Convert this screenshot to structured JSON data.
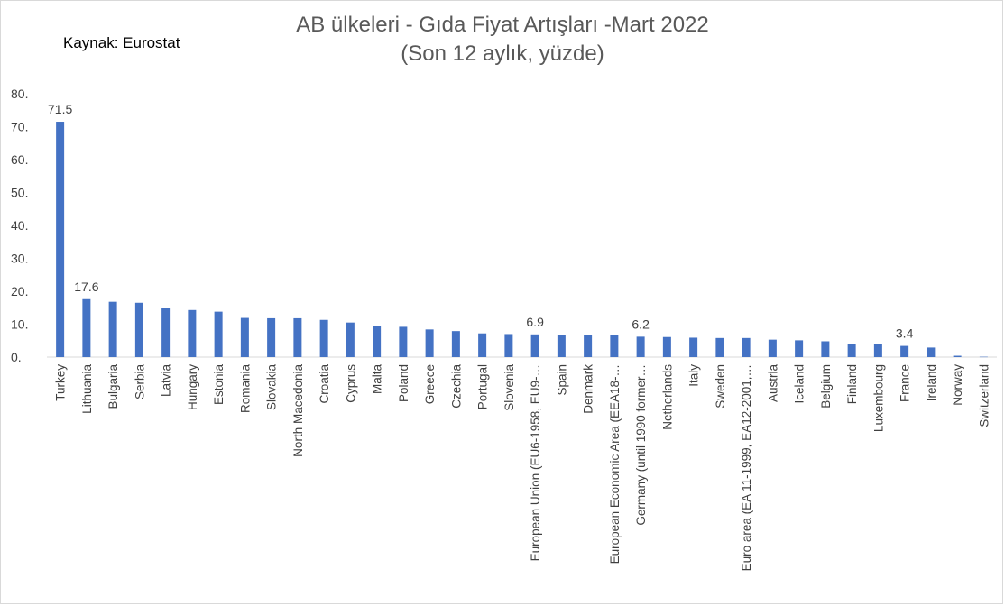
{
  "colors": {
    "bar": "#4472c4",
    "text": "#404040",
    "title": "#595959",
    "grid": "#d9d9d9"
  },
  "title_lines": [
    "AB ülkeleri - Gıda Fiyat Artışları -Mart 2022",
    "(Son 12 aylık, yüzde)"
  ],
  "source": "Kaynak: Eurostat",
  "chart_data": {
    "type": "bar",
    "title": "AB ülkeleri - Gıda Fiyat Artışları -Mart 2022 (Son 12 aylık, yüzde)",
    "xlabel": "",
    "ylabel": "",
    "ylim": [
      0,
      80
    ],
    "y_ticks": [
      "0.",
      "10.",
      "20.",
      "30.",
      "40.",
      "50.",
      "60.",
      "70.",
      "80."
    ],
    "grid": false,
    "categories": [
      "Turkey",
      "Lithuania",
      "Bulgaria",
      "Serbia",
      "Latvia",
      "Hungary",
      "Estonia",
      "Romania",
      "Slovakia",
      "North Macedonia",
      "Croatia",
      "Cyprus",
      "Malta",
      "Poland",
      "Greece",
      "Czechia",
      "Portugal",
      "Slovenia",
      "European Union (EU6-1958, EU9-…",
      "Spain",
      "Denmark",
      "European Economic Area (EEA18-…",
      "Germany (until 1990 former…",
      "Netherlands",
      "Italy",
      "Sweden",
      "Euro area (EA 11-1999, EA12-2001,…",
      "Austria",
      "Iceland",
      "Belgium",
      "Finland",
      "Luxembourg",
      "France",
      "Ireland",
      "Norway",
      "Switzerland"
    ],
    "values": [
      71.5,
      17.6,
      16.8,
      16.5,
      14.9,
      14.3,
      13.8,
      11.9,
      11.8,
      11.8,
      11.3,
      10.5,
      9.5,
      9.2,
      8.4,
      7.9,
      7.2,
      7.0,
      6.9,
      6.8,
      6.7,
      6.6,
      6.2,
      6.1,
      5.9,
      5.8,
      5.8,
      5.3,
      5.1,
      4.8,
      4.1,
      4.0,
      3.4,
      2.9,
      0.4,
      0.1
    ],
    "data_labels": [
      {
        "category": "Turkey",
        "text": "71.5"
      },
      {
        "category": "Lithuania",
        "text": "17.6"
      },
      {
        "category": "European Union (EU6-1958, EU9-…",
        "text": "6.9"
      },
      {
        "category": "Germany (until 1990 former…",
        "text": "6.2"
      },
      {
        "category": "France",
        "text": "3.4"
      }
    ]
  }
}
